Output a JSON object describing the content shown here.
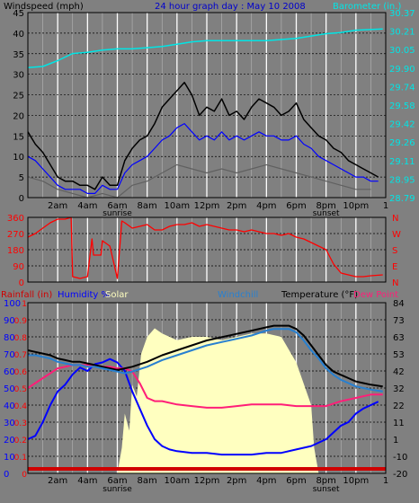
{
  "chart_data": [
    {
      "type": "line",
      "panel": "wind-barometer",
      "title": "24 hour graph day : May 10 2008",
      "left_axis_label": "Windspeed (mph)",
      "right_axis_label": "Barometer (in.)",
      "y_left_ticks": [
        "45",
        "40",
        "35",
        "30",
        "25",
        "20",
        "15",
        "10",
        "5",
        "0"
      ],
      "y_left_lim": [
        0,
        45
      ],
      "y_right_ticks": [
        "30.37",
        "30.21",
        "30.05",
        "29.90",
        "29.74",
        "29.58",
        "29.42",
        "29.26",
        "29.11",
        "28.95",
        "28.79"
      ],
      "y_right_lim": [
        28.79,
        30.37
      ],
      "x_ticks": [
        "2am",
        "4am",
        "6am",
        "8am",
        "10am",
        "12pm",
        "2pm",
        "4pm",
        "6pm",
        "8pm",
        "10pm"
      ],
      "x_sublabels": {
        "sunrise": "sunrise",
        "sunset": "sunset"
      },
      "x_end_label": "1",
      "grid": true,
      "series": [
        {
          "name": "Windspeed (mph)",
          "role": "gust",
          "color": "#000000",
          "x": [
            0,
            0.5,
            1,
            1.5,
            2,
            2.5,
            3,
            3.5,
            4,
            4.5,
            5,
            5.5,
            6,
            6.5,
            7,
            7.5,
            8,
            8.5,
            9,
            9.5,
            10,
            10.5,
            11,
            11.5,
            12,
            12.5,
            13,
            13.5,
            14,
            14.5,
            15,
            15.5,
            16,
            16.5,
            17,
            17.5,
            18,
            18.5,
            19,
            19.5,
            20,
            20.5,
            21,
            21.5,
            22,
            22.5,
            23,
            23.5
          ],
          "values": [
            16,
            13,
            11,
            8,
            5,
            4,
            4,
            3,
            3,
            2,
            5,
            3,
            3,
            9,
            12,
            14,
            15,
            18,
            22,
            24,
            26,
            28,
            25,
            20,
            22,
            21,
            24,
            20,
            21,
            19,
            22,
            24,
            23,
            22,
            20,
            21,
            23,
            19,
            17,
            15,
            14,
            12,
            11,
            9,
            8,
            7,
            6,
            5
          ]
        },
        {
          "name": "Windspeed (mph)",
          "role": "average",
          "color": "#0000ff",
          "x": [
            0,
            0.5,
            1,
            1.5,
            2,
            2.5,
            3,
            3.5,
            4,
            4.5,
            5,
            5.5,
            6,
            6.5,
            7,
            7.5,
            8,
            8.5,
            9,
            9.5,
            10,
            10.5,
            11,
            11.5,
            12,
            12.5,
            13,
            13.5,
            14,
            14.5,
            15,
            15.5,
            16,
            16.5,
            17,
            17.5,
            18,
            18.5,
            19,
            19.5,
            20,
            20.5,
            21,
            21.5,
            22,
            22.5,
            23,
            23.5
          ],
          "values": [
            10,
            9,
            7,
            5,
            3,
            2,
            2,
            2,
            1,
            1,
            3,
            2,
            2,
            6,
            8,
            9,
            10,
            12,
            14,
            15,
            17,
            18,
            16,
            14,
            15,
            14,
            16,
            14,
            15,
            14,
            15,
            16,
            15,
            15,
            14,
            14,
            15,
            13,
            12,
            10,
            9,
            8,
            7,
            6,
            5,
            5,
            4,
            4
          ]
        },
        {
          "name": "Windspeed (mph)",
          "role": "minimum",
          "color": "#606060",
          "x": [
            0,
            1,
            2,
            3,
            4,
            5,
            6,
            7,
            8,
            9,
            10,
            11,
            12,
            13,
            14,
            15,
            16,
            17,
            18,
            19,
            20,
            21,
            22,
            23
          ],
          "values": [
            5,
            4,
            2,
            1,
            0,
            1,
            0,
            3,
            4,
            6,
            8,
            7,
            6,
            7,
            6,
            7,
            8,
            7,
            6,
            5,
            4,
            3,
            2,
            2
          ]
        },
        {
          "name": "Barometer (in.)",
          "color": "#00e5e5",
          "x": [
            0,
            1,
            2,
            3,
            4,
            5,
            6,
            7,
            8,
            9,
            10,
            11,
            12,
            13,
            14,
            15,
            16,
            17,
            18,
            19,
            20,
            21,
            22,
            23.8
          ],
          "values": [
            29.9,
            29.91,
            29.96,
            30.02,
            30.03,
            30.05,
            30.06,
            30.06,
            30.07,
            30.08,
            30.1,
            30.12,
            30.13,
            30.13,
            30.13,
            30.13,
            30.13,
            30.14,
            30.15,
            30.17,
            30.19,
            30.2,
            30.22,
            30.23
          ]
        }
      ]
    },
    {
      "type": "line",
      "panel": "wind-direction",
      "y_left_ticks": [
        "360",
        "270",
        "180",
        "90",
        "0"
      ],
      "y_lim": [
        0,
        360
      ],
      "y_right_labels": [
        "N",
        "W",
        "S",
        "E",
        "N"
      ],
      "series": [
        {
          "name": "Wind direction",
          "color": "#ff0000",
          "x": [
            0,
            0.5,
            1,
            1.5,
            2,
            2.5,
            2.9,
            3.0,
            3.5,
            4.0,
            4.3,
            4.4,
            4.9,
            5.0,
            5.5,
            6.0,
            6.3,
            6.5,
            7,
            7.5,
            8,
            8.5,
            9,
            9.5,
            10,
            10.5,
            11,
            11.5,
            12,
            12.5,
            13,
            13.5,
            14,
            14.5,
            15,
            15.5,
            16,
            16.5,
            17,
            17.5,
            18,
            18.5,
            19,
            19.5,
            20,
            20.5,
            21,
            21.5,
            22,
            22.5,
            23,
            23.8
          ],
          "values": [
            250,
            270,
            300,
            330,
            350,
            350,
            360,
            30,
            20,
            30,
            240,
            150,
            150,
            230,
            200,
            20,
            340,
            330,
            300,
            310,
            320,
            290,
            290,
            310,
            320,
            320,
            330,
            310,
            320,
            310,
            300,
            290,
            290,
            280,
            290,
            280,
            270,
            270,
            260,
            270,
            250,
            240,
            220,
            200,
            180,
            100,
            50,
            40,
            30,
            30,
            35,
            40
          ]
        }
      ]
    },
    {
      "type": "line",
      "panel": "temperature-humidity",
      "labels": {
        "rain": "Rainfall (in)",
        "humidity": "Humidity %",
        "solar": "Solar",
        "windchill": "Windchill",
        "temperature": "Temperature (°F)",
        "dewpoint": "Dew Point"
      },
      "y_left_blue_ticks": [
        "100",
        "90",
        "80",
        "70",
        "60",
        "50",
        "40",
        "30",
        "20",
        "10",
        "0"
      ],
      "y_left_red_ticks": [
        "1",
        "0.9",
        "0.8",
        "0.7",
        "0.6",
        "0.5",
        "0.4",
        "0.3",
        "0.2",
        "0.1",
        "0"
      ],
      "y_right_ticks": [
        "84",
        "73",
        "63",
        "53",
        "42",
        "32",
        "22",
        "11",
        "1",
        "-10",
        "-20"
      ],
      "y_right_lim": [
        -20,
        84
      ],
      "series": [
        {
          "name": "Solar",
          "color": "#ffffc0",
          "x": [
            6,
            6.3,
            6.5,
            6.8,
            7,
            7.3,
            7.6,
            8,
            8.5,
            9,
            10,
            11,
            12,
            13,
            14,
            15,
            16,
            17,
            18,
            19,
            19.2,
            19.5,
            20
          ],
          "values": [
            0,
            15,
            35,
            25,
            52,
            45,
            70,
            80,
            85,
            82,
            78,
            80,
            80,
            78,
            80,
            82,
            82,
            80,
            65,
            40,
            15,
            0,
            0
          ]
        },
        {
          "name": "Humidity %",
          "color": "#0000ff",
          "x": [
            0,
            0.5,
            1,
            1.5,
            2,
            2.5,
            3,
            3.5,
            4,
            4.5,
            5,
            5.5,
            6,
            6.5,
            7,
            7.5,
            8,
            8.5,
            9,
            9.5,
            10,
            11,
            12,
            13,
            14,
            15,
            16,
            17,
            18,
            19,
            20,
            20.5,
            21,
            21.5,
            22,
            22.5,
            23,
            23.5
          ],
          "values": [
            20,
            22,
            30,
            40,
            48,
            52,
            58,
            62,
            60,
            64,
            65,
            67,
            65,
            60,
            48,
            38,
            28,
            20,
            16,
            14,
            13,
            12,
            12,
            11,
            11,
            11,
            12,
            12,
            14,
            16,
            20,
            24,
            28,
            30,
            35,
            38,
            40,
            42
          ]
        },
        {
          "name": "Dew Point",
          "color": "#ff1e78",
          "x": [
            0,
            0.5,
            1,
            1.5,
            2,
            2.5,
            3,
            3.5,
            4,
            4.5,
            5,
            5.5,
            6,
            6.5,
            7,
            7.5,
            8,
            8.5,
            9,
            10,
            11,
            12,
            13,
            14,
            15,
            16,
            17,
            18,
            19,
            20,
            21,
            22,
            23,
            23.8
          ],
          "values": [
            32,
            35,
            38,
            41,
            44,
            45,
            46,
            46,
            46,
            45,
            45,
            45,
            44,
            44,
            42,
            35,
            26,
            24,
            24,
            22,
            21,
            20,
            20,
            21,
            22,
            22,
            22,
            21,
            21,
            21,
            24,
            26,
            28,
            28
          ]
        },
        {
          "name": "Temperature (°F)",
          "color": "#000000",
          "x": [
            0,
            0.5,
            1,
            1.5,
            2,
            2.5,
            3,
            3.5,
            4,
            4.5,
            5,
            5.5,
            6,
            6.5,
            7,
            8,
            9,
            10,
            11,
            12,
            13,
            14,
            15,
            16,
            16.5,
            17,
            17.5,
            18,
            18.5,
            19,
            19.5,
            20,
            20.5,
            21,
            21.5,
            22,
            22.5,
            23,
            23.8
          ],
          "values": [
            55,
            54,
            53,
            52,
            50,
            49,
            48,
            48,
            47,
            46,
            45,
            44,
            43,
            44,
            45,
            48,
            52,
            55,
            58,
            61,
            63,
            65,
            67,
            69,
            70,
            70,
            70,
            68,
            64,
            58,
            52,
            46,
            42,
            40,
            38,
            36,
            35,
            34,
            33
          ]
        },
        {
          "name": "Windchill",
          "color": "#2880d0",
          "x": [
            0,
            0.5,
            1,
            1.5,
            2,
            2.5,
            3,
            3.5,
            4,
            4.5,
            5,
            5.5,
            6,
            6.5,
            7,
            8,
            9,
            10,
            11,
            12,
            13,
            14,
            15,
            16,
            16.5,
            17,
            17.5,
            18,
            18.5,
            19,
            19.5,
            20,
            20.5,
            21,
            21.5,
            22,
            22.5,
            23,
            23.8
          ],
          "values": [
            52,
            52,
            51,
            50,
            48,
            47,
            46,
            46,
            45,
            45,
            44,
            43,
            42,
            41,
            42,
            45,
            49,
            52,
            55,
            58,
            60,
            62,
            64,
            67,
            68,
            68,
            68,
            66,
            61,
            55,
            50,
            44,
            40,
            37,
            35,
            33,
            32,
            31,
            30
          ]
        },
        {
          "name": "Rainfall (in)",
          "color": "#d00000",
          "x": [
            0,
            23.8
          ],
          "values": [
            0,
            0
          ]
        }
      ]
    }
  ]
}
